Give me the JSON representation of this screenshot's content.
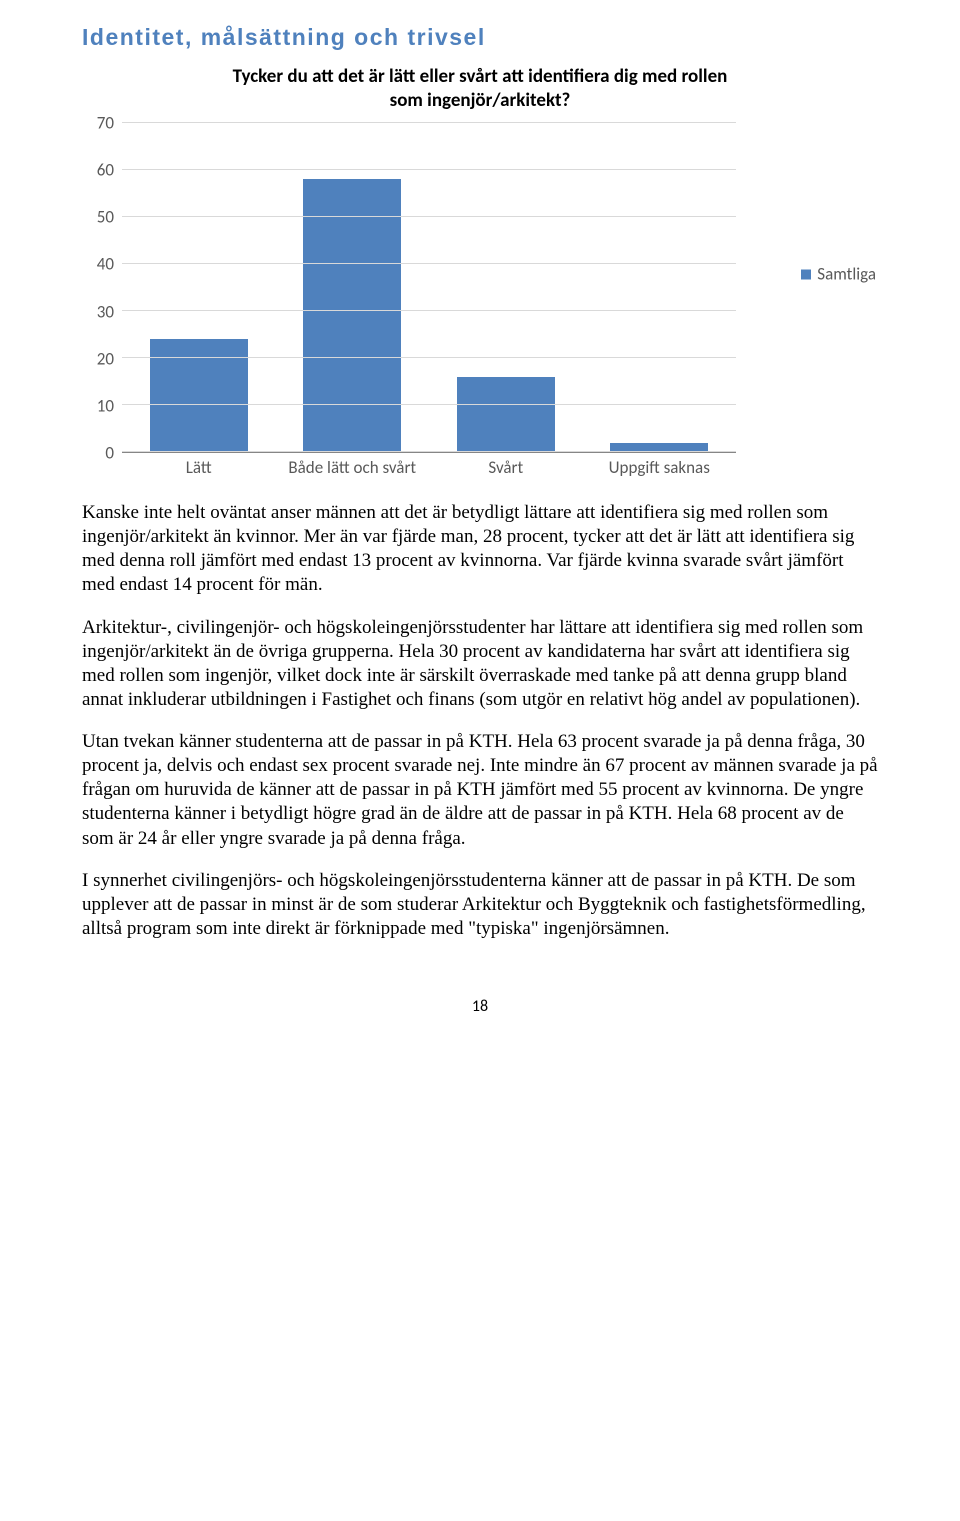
{
  "heading": "Identitet, målsättning och trivsel",
  "chart": {
    "type": "bar",
    "title_line1": "Tycker du att det är lätt eller svårt att identifiera dig med rollen",
    "title_line2": "som ingenjör/arkitekt?",
    "categories": [
      "Lätt",
      "Både lätt och svårt",
      "Svårt",
      "Uppgift saknas"
    ],
    "values": [
      24,
      58,
      16,
      2
    ],
    "ymax": 70,
    "ytick_step": 10,
    "yticks": [
      0,
      10,
      20,
      30,
      40,
      50,
      60,
      70
    ],
    "bar_color": "#4f81bd",
    "grid_color": "#d9d9d9",
    "axis_color": "#868686",
    "bg_color": "#ffffff",
    "label_color": "#595959",
    "legend_label": "Samtliga"
  },
  "paragraphs": [
    "Kanske inte helt oväntat anser männen att det är betydligt lättare att identifiera sig med rollen som ingenjör/arkitekt än kvinnor. Mer än var fjärde man, 28 procent, tycker att det är lätt att identifiera sig med denna roll jämfört med endast 13 procent av kvinnorna. Var fjärde kvinna svarade svårt jämfört med endast 14 procent för män.",
    "Arkitektur-, civilingenjör- och högskoleingenjörsstudenter har lättare att identifiera sig med rollen som ingenjör/arkitekt än de övriga grupperna. Hela 30 procent av kandidaterna har svårt att identifiera sig med rollen som ingenjör, vilket dock inte är särskilt överraskade med tanke på att denna grupp bland annat inkluderar utbildningen i Fastighet och finans (som utgör en relativt hög andel av populationen).",
    "Utan tvekan känner studenterna att de passar in på KTH. Hela 63 procent svarade ja på denna fråga, 30 procent ja, delvis och endast sex procent svarade nej. Inte mindre än 67 procent av männen svarade ja på frågan om huruvida de känner att de passar in på KTH jämfört med 55 procent av kvinnorna. De yngre studenterna känner i betydligt högre grad än de äldre att de passar in på KTH. Hela 68 procent av de som är 24 år eller yngre svarade ja på denna fråga.",
    "I synnerhet civilingenjörs- och högskoleingenjörsstudenterna känner att de passar in på KTH. De som upplever att de passar in minst är de som studerar Arkitektur och Byggteknik och fastighetsförmedling, alltså program som inte direkt är förknippade med \"typiska\" ingenjörsämnen."
  ],
  "page_number": "18"
}
